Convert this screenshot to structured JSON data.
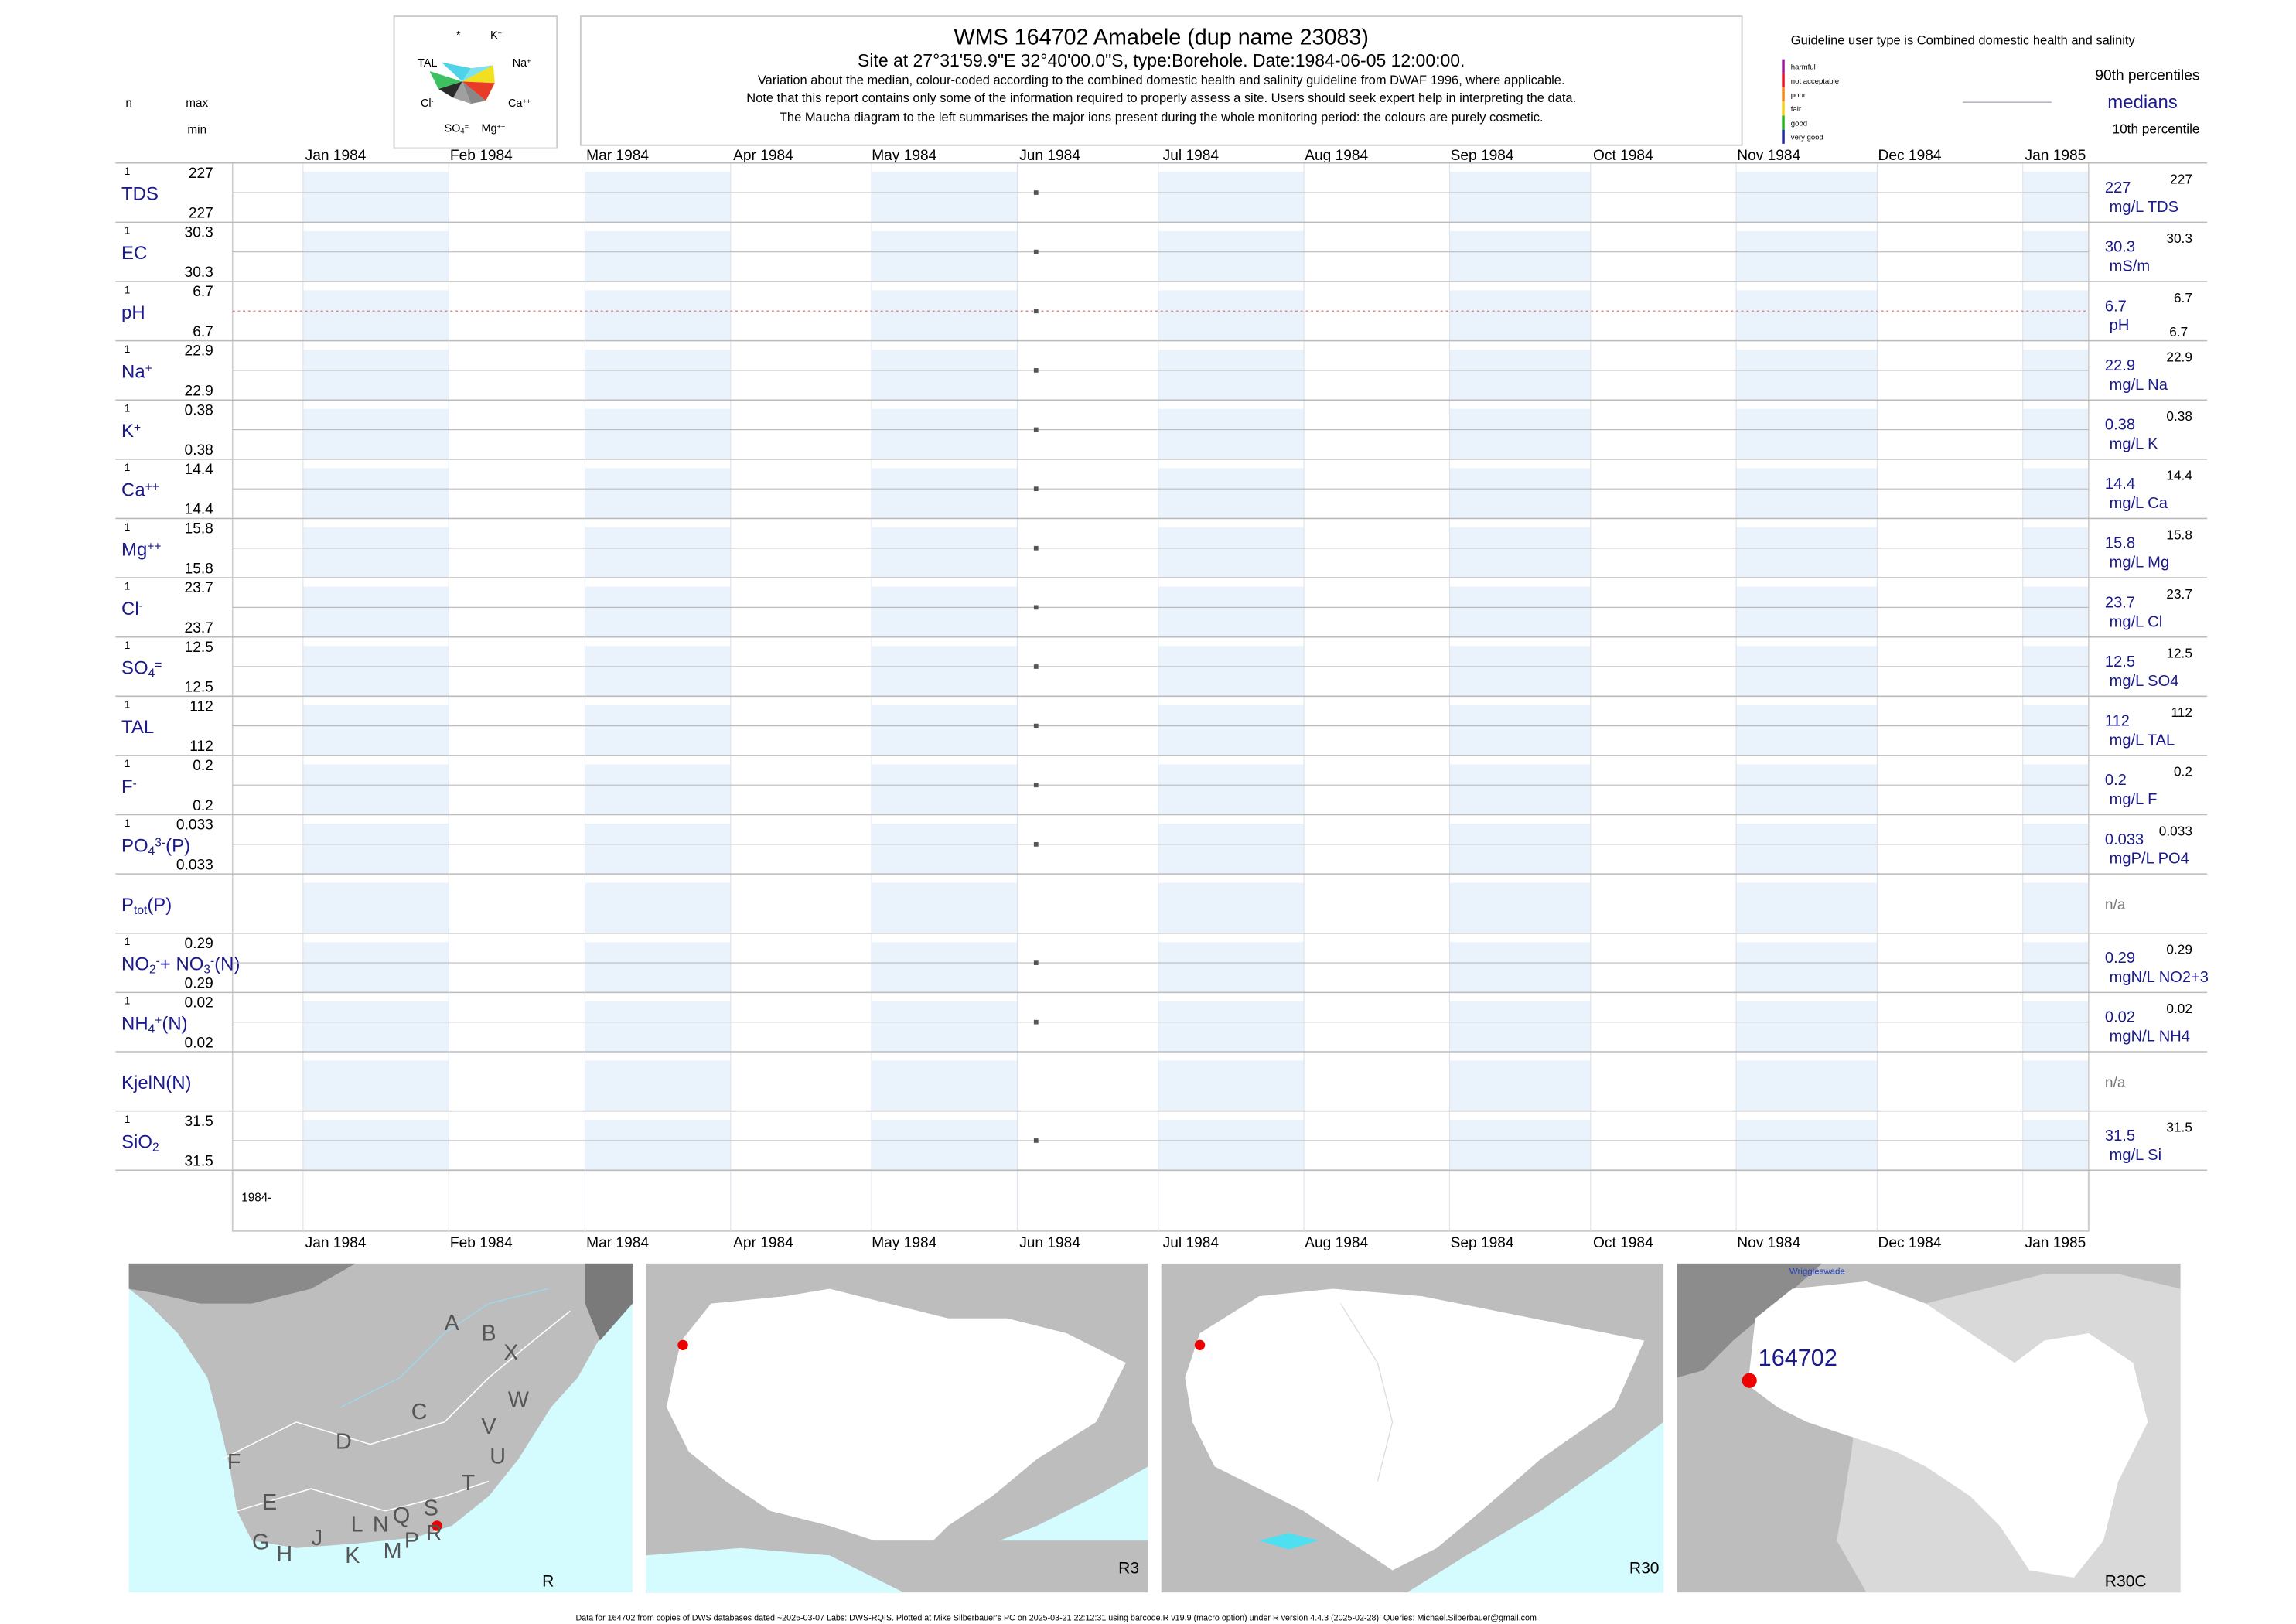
{
  "header": {
    "title": "WMS 164702  Amabele (dup name 23083)",
    "subtitle": "Site at 27°31'59.9\"E 32°40'00.0\"S, type:Borehole. Date:1984-06-05 12:00:00.",
    "notes": [
      "Variation about the median,  colour-coded according to the combined domestic health and salinity guideline from DWAF 1996, where applicable.",
      "Note that this report contains only some of the information required to properly assess a site. Users should seek expert help in interpreting the data.",
      "The Maucha diagram to the left summarises the major ions present during the whole monitoring period: the colours are purely cosmetic."
    ],
    "n_label": "n",
    "max_label": "max",
    "min_label": "min"
  },
  "maucha": {
    "labels": [
      [
        [
          "*",
          ""
        ]
      ],
      [
        [
          "K",
          ""
        ],
        [
          "+",
          "sup"
        ]
      ],
      [
        [
          "TAL",
          ""
        ]
      ],
      [
        [
          "Na",
          ""
        ],
        [
          "+",
          "sup"
        ]
      ],
      [
        [
          "Cl",
          ""
        ],
        [
          "-",
          "sup"
        ]
      ],
      [
        [
          "Ca",
          ""
        ],
        [
          "++",
          "sup"
        ]
      ],
      [
        [
          "SO",
          ""
        ],
        [
          "4",
          "sub"
        ],
        [
          "=",
          "sup"
        ]
      ],
      [
        [
          "Mg",
          ""
        ],
        [
          "++",
          "sup"
        ]
      ]
    ]
  },
  "guideline": {
    "title": "Guideline user type is Combined domestic health and salinity",
    "classes": [
      "harmful",
      "not acceptable",
      "poor",
      "fair",
      "good",
      "very good"
    ],
    "colors": [
      "#9b1a9b",
      "#e8141e",
      "#f08a1e",
      "#f0d21e",
      "#28b428",
      "#1e2896"
    ],
    "p90_label": "90th percentiles",
    "median_label": "medians",
    "p10_label": "10th percentile"
  },
  "sample_date": "1984-06-05",
  "xlim": [
    "1983-12-17",
    "1985-01-15"
  ],
  "x_ticks": [
    {
      "value": "1984-01-01",
      "label": "Jan 1984"
    },
    {
      "value": "1984-02-01",
      "label": "Feb 1984"
    },
    {
      "value": "1984-03-01",
      "label": "Mar 1984"
    },
    {
      "value": "1984-04-01",
      "label": "Apr 1984"
    },
    {
      "value": "1984-05-01",
      "label": "May 1984"
    },
    {
      "value": "1984-06-01",
      "label": "Jun 1984"
    },
    {
      "value": "1984-07-01",
      "label": "Jul 1984"
    },
    {
      "value": "1984-08-01",
      "label": "Aug 1984"
    },
    {
      "value": "1984-09-01",
      "label": "Sep 1984"
    },
    {
      "value": "1984-10-01",
      "label": "Oct 1984"
    },
    {
      "value": "1984-11-01",
      "label": "Nov 1984"
    },
    {
      "value": "1984-12-01",
      "label": "Dec 1984"
    },
    {
      "value": "1985-01-01",
      "label": "Jan 1985"
    }
  ],
  "year_label": "1984-",
  "rows": [
    {
      "label": [
        [
          "TDS",
          ""
        ]
      ],
      "n": 1,
      "max": 227,
      "min": 227,
      "median": 227,
      "p90": 227,
      "unit": "mg/L TDS"
    },
    {
      "label": [
        [
          "EC",
          ""
        ]
      ],
      "n": 1,
      "max": 30.3,
      "min": 30.3,
      "median": 30.3,
      "p90": 30.3,
      "unit": "mS/m"
    },
    {
      "label": [
        [
          "pH",
          ""
        ]
      ],
      "n": 1,
      "max": 6.7,
      "min": 6.7,
      "median": 6.7,
      "p90": 6.7,
      "p10": 6.7,
      "unit": "pH",
      "line_color": "#d98c8c"
    },
    {
      "label": [
        [
          "Na",
          ""
        ],
        [
          "+",
          "sup"
        ]
      ],
      "n": 1,
      "max": 22.9,
      "min": 22.9,
      "median": 22.9,
      "p90": 22.9,
      "unit": "mg/L Na"
    },
    {
      "label": [
        [
          "K",
          ""
        ],
        [
          "+",
          "sup"
        ]
      ],
      "n": 1,
      "max": 0.38,
      "min": 0.38,
      "median": 0.38,
      "p90": 0.38,
      "unit": "mg/L K"
    },
    {
      "label": [
        [
          "Ca",
          ""
        ],
        [
          "++",
          "sup"
        ]
      ],
      "n": 1,
      "max": 14.4,
      "min": 14.4,
      "median": 14.4,
      "p90": 14.4,
      "unit": "mg/L Ca"
    },
    {
      "label": [
        [
          "Mg",
          ""
        ],
        [
          "++",
          "sup"
        ]
      ],
      "n": 1,
      "max": 15.8,
      "min": 15.8,
      "median": 15.8,
      "p90": 15.8,
      "unit": "mg/L Mg"
    },
    {
      "label": [
        [
          "Cl",
          ""
        ],
        [
          "-",
          "sup"
        ]
      ],
      "n": 1,
      "max": 23.7,
      "min": 23.7,
      "median": 23.7,
      "p90": 23.7,
      "unit": "mg/L Cl"
    },
    {
      "label": [
        [
          "SO",
          ""
        ],
        [
          "4",
          "sub"
        ],
        [
          "=",
          "sup"
        ]
      ],
      "n": 1,
      "max": 12.5,
      "min": 12.5,
      "median": 12.5,
      "p90": 12.5,
      "unit": "mg/L SO4"
    },
    {
      "label": [
        [
          "TAL",
          ""
        ]
      ],
      "n": 1,
      "max": 112,
      "min": 112,
      "median": 112,
      "p90": 112,
      "unit": "mg/L TAL"
    },
    {
      "label": [
        [
          "F",
          ""
        ],
        [
          "-",
          "sup"
        ]
      ],
      "n": 1,
      "max": 0.2,
      "min": 0.2,
      "median": 0.2,
      "p90": 0.2,
      "unit": "mg/L F"
    },
    {
      "label": [
        [
          "PO",
          ""
        ],
        [
          "4",
          "sub"
        ],
        [
          "3-",
          "sup"
        ],
        [
          "(P)",
          ""
        ]
      ],
      "n": 1,
      "max": 0.033,
      "min": 0.033,
      "median": 0.033,
      "p90": 0.033,
      "unit": "mgP/L PO4"
    },
    {
      "label": [
        [
          "P",
          ""
        ],
        [
          "tot",
          "sub"
        ],
        [
          "(P)",
          ""
        ]
      ],
      "na": "n/a"
    },
    {
      "label": [
        [
          "NO",
          ""
        ],
        [
          "2",
          "sub"
        ],
        [
          "-",
          "sup"
        ],
        [
          "+ NO",
          ""
        ],
        [
          "3",
          "sub"
        ],
        [
          "-",
          "sup"
        ],
        [
          "(N)",
          ""
        ]
      ],
      "n": 1,
      "max": 0.29,
      "min": 0.29,
      "median": 0.29,
      "p90": 0.29,
      "unit": "mgN/L NO2+3"
    },
    {
      "label": [
        [
          "NH",
          ""
        ],
        [
          "4",
          "sub"
        ],
        [
          "+",
          "sup"
        ],
        [
          "(N)",
          ""
        ]
      ],
      "n": 1,
      "max": 0.02,
      "min": 0.02,
      "median": 0.02,
      "p90": 0.02,
      "unit": "mgN/L NH4"
    },
    {
      "label": [
        [
          "KjelN(N)",
          ""
        ]
      ],
      "na": "n/a"
    },
    {
      "label": [
        [
          "SiO",
          ""
        ],
        [
          "2",
          "sub"
        ]
      ],
      "n": 1,
      "max": 31.5,
      "min": 31.5,
      "median": 31.5,
      "p90": 31.5,
      "unit": "mg/L Si"
    }
  ],
  "maps": {
    "panels": [
      "R",
      "R3",
      "R30",
      "R30C"
    ],
    "letters": [
      "A",
      "B",
      "X",
      "W",
      "C",
      "V",
      "U",
      "D",
      "F",
      "T",
      "E",
      "S",
      "L",
      "N",
      "Q",
      "G",
      "H",
      "J",
      "K",
      "M",
      "P",
      "R"
    ],
    "station": "164702",
    "place": "Wriggleswade"
  },
  "footer": "Data for 164702 from copies of DWS databases dated ~2025-03-07 Labs: DWS-RQIS. Plotted at Mike Silberbauer's PC on 2025-03-21 22:12:31 using barcode.R v19.9 (macro option) under R version 4.4.3 (2025-02-28). Queries: Michael.Silberbauer@gmail.com"
}
